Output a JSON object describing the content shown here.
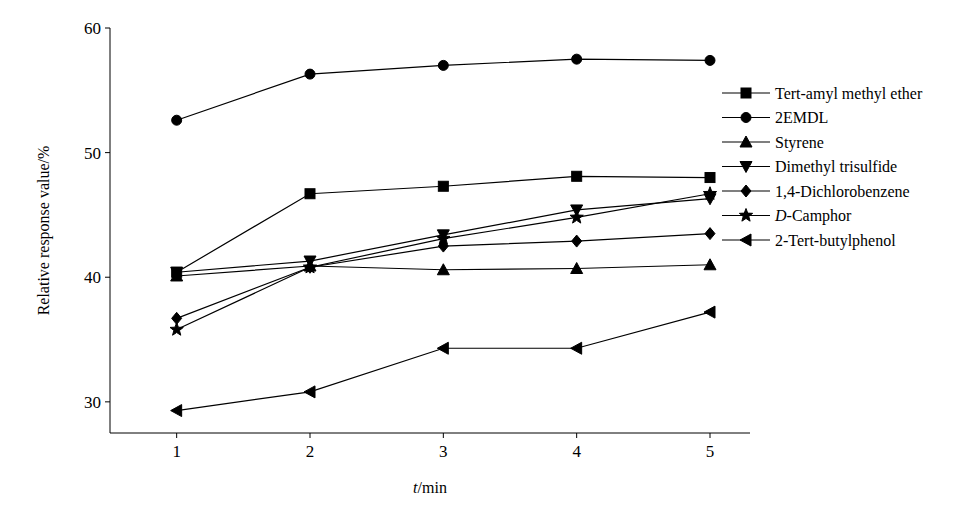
{
  "chart_data": {
    "type": "line",
    "x_label": "t/min",
    "y_label": "Relative response value/%",
    "x": [
      1,
      2,
      3,
      4,
      5
    ],
    "xlim": [
      0.5,
      5.3
    ],
    "xticks": [
      1,
      2,
      3,
      4,
      5
    ],
    "ylim": [
      27.5,
      60
    ],
    "yticks": [
      30,
      40,
      50,
      60
    ],
    "grid": false,
    "legend": "upper right",
    "series": [
      {
        "name": "Tert-amyl methyl ether",
        "color": "#000000",
        "marker": "square",
        "values": [
          40.4,
          46.7,
          47.3,
          48.1,
          48.0
        ]
      },
      {
        "name": "2EMDL",
        "color": "#000000",
        "marker": "circle",
        "values": [
          52.6,
          56.3,
          57.0,
          57.5,
          57.4
        ]
      },
      {
        "name": "Styrene",
        "color": "#000000",
        "marker": "triangle-up",
        "values": [
          40.1,
          40.9,
          40.6,
          40.7,
          41.0
        ]
      },
      {
        "name": "Dimethyl trisulfide",
        "color": "#000000",
        "marker": "triangle-down",
        "values": [
          40.4,
          41.3,
          43.4,
          45.4,
          46.3
        ]
      },
      {
        "name": "1,4-Dichlorobenzene",
        "color": "#000000",
        "marker": "diamond",
        "values": [
          36.7,
          40.8,
          42.5,
          42.9,
          43.5
        ]
      },
      {
        "name": "D-Camphor",
        "color": "#000000",
        "marker": "star",
        "values": [
          35.8,
          40.8,
          43.1,
          44.8,
          46.7
        ]
      },
      {
        "name": "2-Tert-butylphenol",
        "color": "#000000",
        "marker": "triangle-left",
        "values": [
          29.3,
          30.8,
          34.3,
          34.3,
          37.2
        ]
      }
    ]
  }
}
